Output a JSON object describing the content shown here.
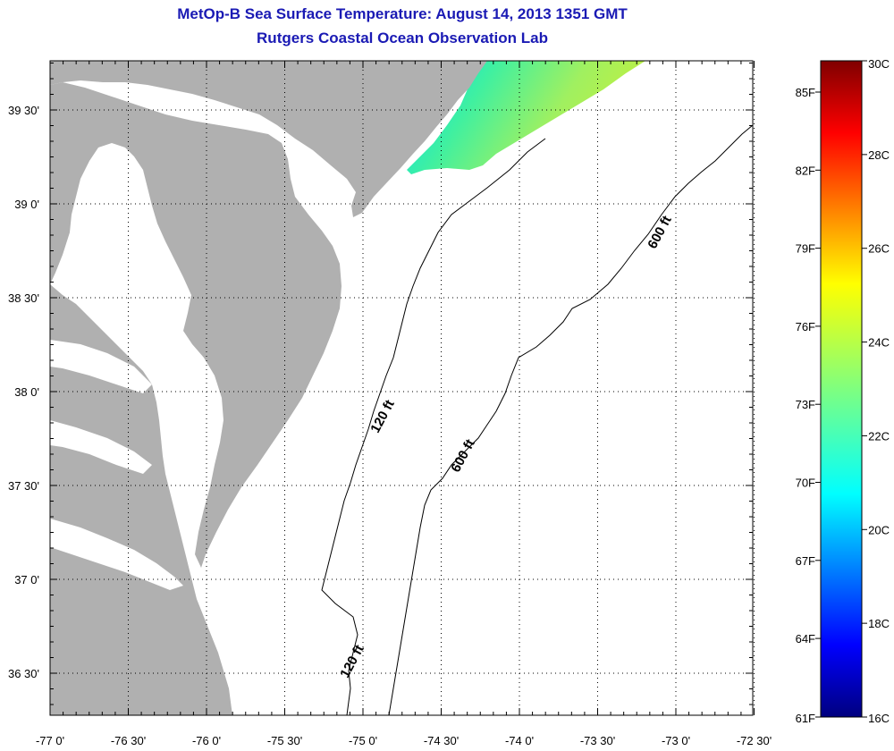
{
  "header": {
    "title": "MetOp-B Sea Surface Temperature:  August 14, 2013 1351 GMT",
    "subtitle": "Rutgers Coastal Ocean Observation Lab"
  },
  "map": {
    "lon_labels": [
      "-77 0'",
      "-76 30'",
      "-76 0'",
      "-75 30'",
      "-75 0'",
      "-74 30'",
      "-74 0'",
      "-73 30'",
      "-73 0'",
      "-72 30'"
    ],
    "lat_labels": [
      "39 30'",
      "39 0'",
      "38 30'",
      "38 0'",
      "37 30'",
      "37 0'",
      "36 30'"
    ],
    "contour_labels": [
      "600 ft",
      "600 ft",
      "120 ft",
      "120 ft"
    ],
    "colors": {
      "land": "#b0b0b0",
      "water": "#ffffff",
      "contour": "#000000",
      "title": "#1a1ab4"
    }
  },
  "colorbar": {
    "celsius_labels": [
      "30C",
      "28C",
      "26C",
      "24C",
      "22C",
      "20C",
      "18C",
      "16C"
    ],
    "fahrenheit_labels": [
      "85F",
      "82F",
      "79F",
      "76F",
      "73F",
      "70F",
      "67F",
      "64F",
      "61F"
    ],
    "range_c": [
      16,
      30
    ],
    "colormap": "jet"
  }
}
